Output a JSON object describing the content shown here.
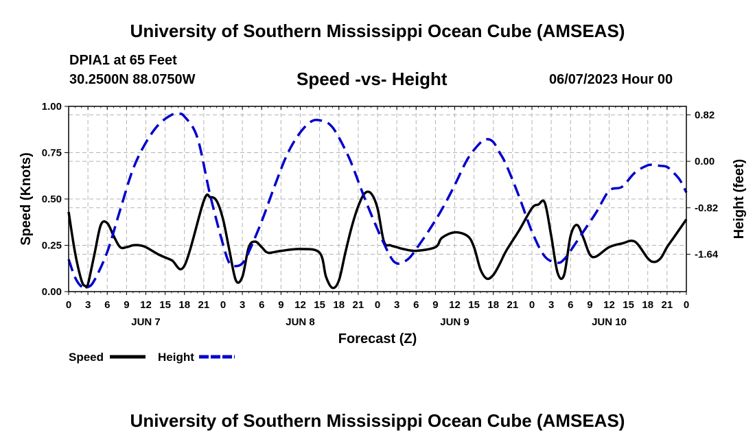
{
  "header": {
    "title": "University of Southern Mississippi Ocean Cube (AMSEAS)",
    "station": "DPIA1 at 65 Feet",
    "coords": "30.2500N  88.0750W",
    "subtitle": "Speed -vs- Height",
    "datetime": "06/07/2023 Hour 00"
  },
  "footer": {
    "title": "University of Southern Mississippi Ocean Cube (AMSEAS)"
  },
  "chart_data": {
    "type": "line",
    "title": "Speed -vs- Height",
    "xlabel": "Forecast (Z)",
    "ylabel": "Speed (Knots)",
    "y2label": "Height (feet)",
    "x_unit": "hours since 06/07/2023 00Z",
    "xlim": [
      0,
      96
    ],
    "ylim": [
      0,
      1.0
    ],
    "y2lim": [
      -2.3,
      0.97
    ],
    "x_ticks": [
      0,
      3,
      6,
      9,
      12,
      15,
      18,
      21,
      24,
      27,
      30,
      33,
      36,
      39,
      42,
      45,
      48,
      51,
      54,
      57,
      60,
      63,
      66,
      69,
      72,
      75,
      78,
      81,
      84,
      87,
      90,
      93,
      96
    ],
    "x_tick_labels": [
      "0",
      "3",
      "6",
      "9",
      "12",
      "15",
      "18",
      "21",
      "0",
      "3",
      "6",
      "9",
      "12",
      "15",
      "18",
      "21",
      "0",
      "3",
      "6",
      "9",
      "12",
      "15",
      "18",
      "21",
      "0",
      "3",
      "6",
      "9",
      "12",
      "15",
      "18",
      "21",
      "0"
    ],
    "day_labels": [
      {
        "x": 12,
        "label": "JUN 7"
      },
      {
        "x": 36,
        "label": "JUN 8"
      },
      {
        "x": 60,
        "label": "JUN 9"
      },
      {
        "x": 84,
        "label": "JUN 10"
      }
    ],
    "y_ticks": [
      0.0,
      0.25,
      0.5,
      0.75,
      1.0
    ],
    "y_tick_labels": [
      "0.00",
      "0.25",
      "0.50",
      "0.75",
      "1.00"
    ],
    "y2_ticks": [
      0.82,
      0.0,
      -0.82,
      -1.64
    ],
    "y2_tick_labels": [
      "0.82",
      "0.00",
      "-0.82",
      "-1.64"
    ],
    "grid": true,
    "legend": [
      {
        "label": "Speed",
        "color": "#000000",
        "dash": "solid"
      },
      {
        "label": "Height",
        "color": "#0000cc",
        "dash": "dashed"
      }
    ],
    "series": [
      {
        "name": "Speed",
        "axis": "left",
        "color": "#000000",
        "x": [
          0,
          1,
          2,
          2.6,
          3,
          4,
          5,
          6,
          7,
          8,
          9,
          10,
          11,
          12,
          14,
          16,
          18,
          21,
          22,
          23,
          24,
          25,
          26,
          27,
          28,
          29,
          30,
          31,
          33,
          36,
          39,
          40,
          41,
          42,
          43,
          44,
          45,
          46,
          47,
          48,
          49,
          50,
          51,
          52,
          54,
          57,
          58,
          60,
          62,
          63,
          64,
          65,
          66,
          67,
          68,
          70,
          72,
          73,
          74,
          75,
          76,
          77,
          78,
          79,
          80,
          81,
          82,
          84,
          86,
          88,
          90,
          91,
          92,
          93,
          94,
          95,
          96
        ],
        "values": [
          0.43,
          0.21,
          0.06,
          0.03,
          0.04,
          0.2,
          0.36,
          0.37,
          0.3,
          0.24,
          0.24,
          0.25,
          0.25,
          0.24,
          0.2,
          0.17,
          0.14,
          0.49,
          0.51,
          0.49,
          0.39,
          0.22,
          0.06,
          0.08,
          0.24,
          0.27,
          0.24,
          0.21,
          0.22,
          0.23,
          0.21,
          0.08,
          0.02,
          0.06,
          0.21,
          0.35,
          0.46,
          0.53,
          0.53,
          0.45,
          0.27,
          0.25,
          0.24,
          0.23,
          0.22,
          0.24,
          0.29,
          0.32,
          0.3,
          0.24,
          0.12,
          0.07,
          0.09,
          0.15,
          0.22,
          0.33,
          0.45,
          0.47,
          0.48,
          0.3,
          0.1,
          0.09,
          0.3,
          0.36,
          0.29,
          0.2,
          0.19,
          0.24,
          0.26,
          0.27,
          0.18,
          0.16,
          0.18,
          0.24,
          0.29,
          0.34,
          0.39
        ]
      },
      {
        "name": "Height",
        "axis": "right",
        "color": "#0000cc",
        "x": [
          0,
          1,
          2,
          3,
          4,
          6,
          8,
          10,
          12,
          14,
          16,
          17,
          18,
          20,
          22,
          24,
          25,
          26,
          27,
          28,
          30,
          32,
          34,
          36,
          38,
          40,
          41,
          42,
          43,
          44,
          46,
          48,
          50,
          51,
          52,
          53,
          54,
          56,
          58,
          60,
          62,
          64,
          65,
          66,
          67,
          68,
          70,
          72,
          74,
          76,
          77,
          78,
          80,
          82,
          84,
          86,
          88,
          90,
          91,
          92,
          93,
          94,
          95,
          96
        ],
        "values": [
          -1.73,
          -2.05,
          -2.21,
          -2.22,
          -2.1,
          -1.6,
          -0.86,
          -0.14,
          0.33,
          0.65,
          0.82,
          0.84,
          0.79,
          0.42,
          -0.6,
          -1.47,
          -1.8,
          -1.85,
          -1.8,
          -1.6,
          -1.06,
          -0.44,
          0.13,
          0.51,
          0.72,
          0.69,
          0.6,
          0.42,
          0.2,
          -0.05,
          -0.65,
          -1.2,
          -1.68,
          -1.8,
          -1.78,
          -1.7,
          -1.55,
          -1.22,
          -0.85,
          -0.42,
          0.04,
          0.33,
          0.39,
          0.34,
          0.15,
          -0.06,
          -0.62,
          -1.24,
          -1.68,
          -1.79,
          -1.73,
          -1.58,
          -1.24,
          -0.9,
          -0.52,
          -0.45,
          -0.2,
          -0.07,
          -0.07,
          -0.08,
          -0.1,
          -0.2,
          -0.33,
          -0.55
        ]
      }
    ]
  }
}
